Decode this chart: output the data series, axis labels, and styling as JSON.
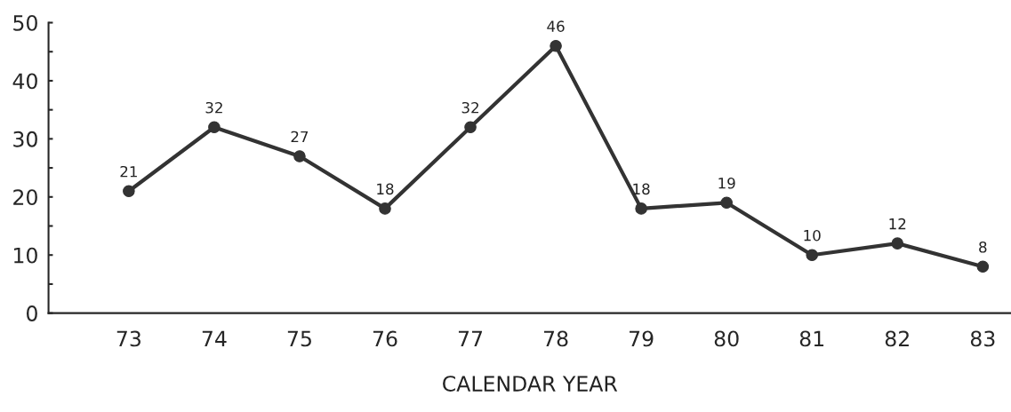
{
  "chart_data": {
    "type": "line",
    "xlabel": "CALENDAR YEAR",
    "categories": [
      "73",
      "74",
      "75",
      "76",
      "77",
      "78",
      "79",
      "80",
      "81",
      "82",
      "83"
    ],
    "series": [
      {
        "color": "#333333",
        "values": [
          21,
          32,
          27,
          18,
          32,
          46,
          18,
          19,
          10,
          12,
          8
        ]
      }
    ],
    "ylim": [
      0,
      50
    ],
    "yticks": [
      0,
      {
        "value": 5,
        "label": null
      },
      10,
      {
        "value": 15,
        "label": null
      },
      20,
      {
        "value": 25,
        "label": null
      },
      30,
      {
        "value": 35,
        "label": null
      },
      40,
      {
        "value": 45,
        "label": null
      },
      50
    ],
    "data_labels": true,
    "marker": "circle",
    "line_style": "solid"
  }
}
